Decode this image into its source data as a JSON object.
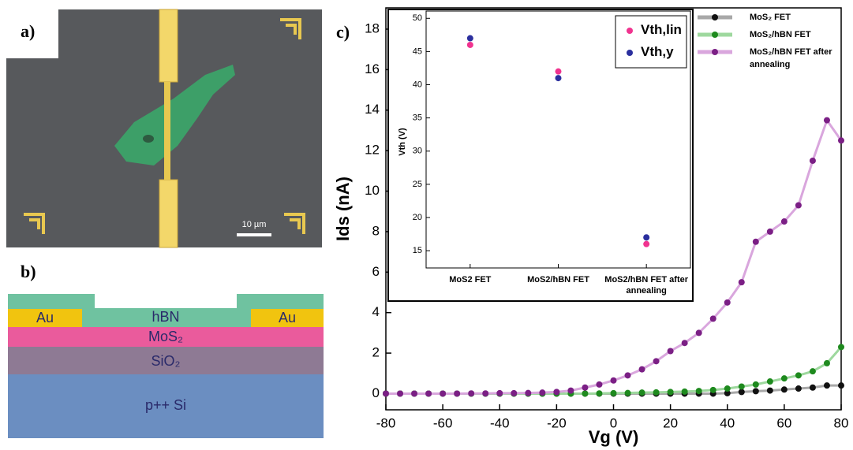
{
  "panel_labels": [
    "a)",
    "b)",
    "c)"
  ],
  "micrograph": {
    "scale_bar": "10 µm"
  },
  "schematic": {
    "layers": [
      "Au",
      "hBN",
      "Au",
      "MoS₂",
      "SiO₂",
      "p++ Si"
    ]
  },
  "chart_data": [
    {
      "type": "line",
      "xlabel": "Vg (V)",
      "ylabel": "Ids (nA)",
      "x": [
        -80,
        -75,
        -70,
        -65,
        -60,
        -55,
        -50,
        -45,
        -40,
        -35,
        -30,
        -25,
        -20,
        -15,
        -10,
        -5,
        0,
        5,
        10,
        15,
        20,
        25,
        30,
        35,
        40,
        45,
        50,
        55,
        60,
        65,
        70,
        75,
        80
      ],
      "series": [
        {
          "name": "MoS₂ FET",
          "color": "#111111",
          "line_color": "#a8a8a8",
          "values": [
            0,
            0,
            0,
            0,
            0,
            0,
            0,
            0,
            0,
            0,
            0,
            0,
            0,
            0,
            0,
            0,
            0,
            0,
            0,
            0,
            0,
            0,
            0,
            0,
            0.02,
            0.08,
            0.12,
            0.15,
            0.2,
            0.25,
            0.3,
            0.4,
            0.4
          ]
        },
        {
          "name": "MoS₂/hBN FET",
          "color": "#1e8a1e",
          "line_color": "#9ed89e",
          "values": [
            0,
            0,
            0,
            0,
            0,
            0,
            0,
            0,
            0,
            0,
            0,
            0,
            0,
            0,
            0,
            0.01,
            0.02,
            0.03,
            0.05,
            0.06,
            0.08,
            0.1,
            0.13,
            0.18,
            0.25,
            0.35,
            0.45,
            0.6,
            0.75,
            0.9,
            1.1,
            1.5,
            2.3
          ]
        },
        {
          "name": "MoS₂/hBN FET after annealing",
          "color": "#7b1f85",
          "line_color": "#d9a6dd",
          "values": [
            0,
            0,
            0,
            0,
            0,
            0,
            0.01,
            0.01,
            0.02,
            0.02,
            0.03,
            0.05,
            0.08,
            0.15,
            0.3,
            0.45,
            0.65,
            0.9,
            1.2,
            1.6,
            2.1,
            2.5,
            3.0,
            3.7,
            4.5,
            5.5,
            7.5,
            8.0,
            8.5,
            9.3,
            11.5,
            13.5,
            12.5
          ]
        }
      ],
      "xlim": [
        -80,
        80
      ],
      "ylim": [
        -0.8,
        19.05
      ],
      "xticks": [
        -80,
        -60,
        -40,
        -20,
        0,
        20,
        40,
        60,
        80
      ],
      "yticks": [
        0,
        2,
        4,
        6,
        8,
        10,
        12,
        14,
        16,
        18
      ],
      "legend": "upper right"
    },
    {
      "type": "dot",
      "ylabel": "Vth (V)",
      "categories": [
        "MoS2 FET",
        "MoS2/hBN FET",
        "MoS2/hBN FET after annealing"
      ],
      "series": [
        {
          "name": "Vth,lin",
          "color": "#f0338f",
          "values": [
            46,
            42,
            16
          ]
        },
        {
          "name": "Vth,y",
          "color": "#2b2f9e",
          "values": [
            47,
            41,
            17
          ]
        }
      ],
      "ylim": [
        12.4,
        51.1
      ],
      "yticks": [
        15,
        20,
        25,
        30,
        35,
        40,
        45,
        50
      ],
      "legend": "upper right"
    }
  ]
}
